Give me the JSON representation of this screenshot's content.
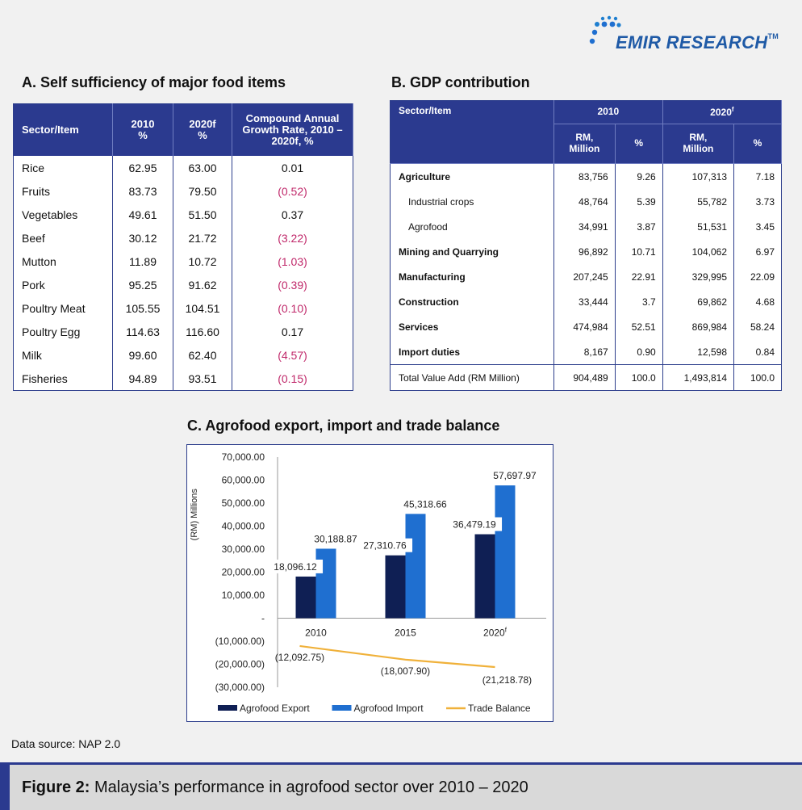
{
  "brand": {
    "name": "EMIR RESEARCH",
    "tm": "TM"
  },
  "section_a": {
    "title": "A. Self sufficiency of major food items",
    "headers": [
      "Sector/Item",
      "2010\n%",
      "2020f\n%",
      "Compound Annual Growth Rate, 2010 – 2020f, %"
    ],
    "rows": [
      {
        "item": "Rice",
        "y2010": "62.95",
        "y2020": "63.00",
        "cagr": "0.01",
        "neg": false
      },
      {
        "item": "Fruits",
        "y2010": "83.73",
        "y2020": "79.50",
        "cagr": "(0.52)",
        "neg": true
      },
      {
        "item": "Vegetables",
        "y2010": "49.61",
        "y2020": "51.50",
        "cagr": "0.37",
        "neg": false
      },
      {
        "item": "Beef",
        "y2010": "30.12",
        "y2020": "21.72",
        "cagr": "(3.22)",
        "neg": true
      },
      {
        "item": "Mutton",
        "y2010": "11.89",
        "y2020": "10.72",
        "cagr": "(1.03)",
        "neg": true
      },
      {
        "item": "Pork",
        "y2010": "95.25",
        "y2020": "91.62",
        "cagr": "(0.39)",
        "neg": true
      },
      {
        "item": "Poultry Meat",
        "y2010": "105.55",
        "y2020": "104.51",
        "cagr": "(0.10)",
        "neg": true
      },
      {
        "item": "Poultry Egg",
        "y2010": "114.63",
        "y2020": "116.60",
        "cagr": "0.17",
        "neg": false
      },
      {
        "item": "Milk",
        "y2010": "99.60",
        "y2020": "62.40",
        "cagr": "(4.57)",
        "neg": true
      },
      {
        "item": "Fisheries",
        "y2010": "94.89",
        "y2020": "93.51",
        "cagr": "(0.15)",
        "neg": true
      }
    ]
  },
  "section_b": {
    "title": "B. GDP contribution",
    "header_item": "Sector/Item",
    "header_2010": "2010",
    "header_2020": "2020",
    "header_2020_sup": "f",
    "sub_rm": "RM,\nMillion",
    "sub_pct": "%",
    "rows": [
      {
        "item": "Agriculture",
        "rm2010": "83,756",
        "p2010": "9.26",
        "rm2020": "107,313",
        "p2020": "7.18",
        "bold": true,
        "indent": false
      },
      {
        "item": "Industrial crops",
        "rm2010": "48,764",
        "p2010": "5.39",
        "rm2020": "55,782",
        "p2020": "3.73",
        "bold": false,
        "indent": true
      },
      {
        "item": "Agrofood",
        "rm2010": "34,991",
        "p2010": "3.87",
        "rm2020": "51,531",
        "p2020": "3.45",
        "bold": false,
        "indent": true
      },
      {
        "item": "Mining and Quarrying",
        "rm2010": "96,892",
        "p2010": "10.71",
        "rm2020": "104,062",
        "p2020": "6.97",
        "bold": true,
        "indent": false
      },
      {
        "item": "Manufacturing",
        "rm2010": "207,245",
        "p2010": "22.91",
        "rm2020": "329,995",
        "p2020": "22.09",
        "bold": true,
        "indent": false
      },
      {
        "item": "Construction",
        "rm2010": "33,444",
        "p2010": "3.7",
        "rm2020": "69,862",
        "p2020": "4.68",
        "bold": true,
        "indent": false
      },
      {
        "item": "Services",
        "rm2010": "474,984",
        "p2010": "52.51",
        "rm2020": "869,984",
        "p2020": "58.24",
        "bold": true,
        "indent": false
      },
      {
        "item": "Import duties",
        "rm2010": "8,167",
        "p2010": "0.90",
        "rm2020": "12,598",
        "p2020": "0.84",
        "bold": true,
        "indent": false
      }
    ],
    "total": {
      "item": "Total Value Add (RM Million)",
      "rm2010": "904,489",
      "p2010": "100.0",
      "rm2020": "1,493,814",
      "p2020": "100.0"
    }
  },
  "section_c": {
    "title": "C. Agrofood export, import and trade balance"
  },
  "chart_data": {
    "type": "bar",
    "title": "C. Agrofood export, import and trade balance",
    "ylabel": "(RM) Millions",
    "ylim": [
      -30000,
      70000
    ],
    "yticks": [
      "70,000.00",
      "60,000.00",
      "50,000.00",
      "40,000.00",
      "30,000.00",
      "20,000.00",
      "10,000.00",
      "-",
      "(10,000.00)",
      "(20,000.00)",
      "(30,000.00)"
    ],
    "ytick_values": [
      70000,
      60000,
      50000,
      40000,
      30000,
      20000,
      10000,
      0,
      -10000,
      -20000,
      -30000
    ],
    "categories": [
      "2010",
      "2015",
      "2020"
    ],
    "category_sup": [
      "",
      "",
      "f"
    ],
    "series": [
      {
        "name": "Agrofood Export",
        "type": "bar",
        "color": "#0f1f54",
        "values": [
          18096.12,
          27310.76,
          36479.19
        ],
        "labels": [
          "18,096.12",
          "27,310.76",
          "36,479.19"
        ]
      },
      {
        "name": "Agrofood Import",
        "type": "bar",
        "color": "#1f6fd0",
        "values": [
          30188.87,
          45318.66,
          57697.97
        ],
        "labels": [
          "30,188.87",
          "45,318.66",
          "57,697.97"
        ]
      },
      {
        "name": "Trade Balance",
        "type": "line",
        "color": "#f0b13a",
        "values": [
          -12092.75,
          -18007.9,
          -21218.78
        ],
        "labels": [
          "(12,092.75)",
          "(18,007.90)",
          "(21,218.78)"
        ]
      }
    ]
  },
  "source": "Data source: NAP 2.0",
  "caption": {
    "bold": "Figure 2:",
    "text": " Malaysia’s performance in agrofood sector over 2010  – 2020"
  }
}
